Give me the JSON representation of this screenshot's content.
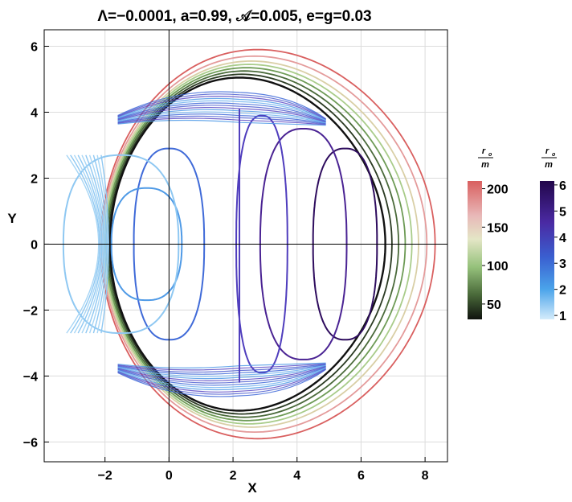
{
  "chart_data": {
    "type": "line",
    "title": "Λ=−0.0001, a=0.99, 𝒜=0.005, e=g=0.03",
    "xlabel": "X",
    "ylabel": "Y",
    "xlim": [
      -3.9,
      8.7
    ],
    "ylim": [
      -6.6,
      6.5
    ],
    "xticks": [
      -2,
      0,
      2,
      4,
      6,
      8
    ],
    "yticks": [
      -6,
      -4,
      -2,
      0,
      2,
      4,
      6
    ],
    "xtick_labels": [
      "−2",
      "0",
      "2",
      "4",
      "6",
      "8"
    ],
    "ytick_labels": [
      "−6",
      "−4",
      "−2",
      "0",
      "2",
      "4",
      "6"
    ],
    "grid": true,
    "outer_orbits": [
      {
        "r_o": 200,
        "right": 8.0,
        "left": -2.45,
        "top": 5.9,
        "color": "#d95f5f"
      },
      {
        "r_o": 175,
        "right": 7.75,
        "left": -2.4,
        "top": 5.7,
        "color": "#e49b9b"
      },
      {
        "r_o": 150,
        "right": 7.5,
        "left": -2.35,
        "top": 5.55,
        "color": "#d9cfa6"
      },
      {
        "r_o": 125,
        "right": 7.3,
        "left": -2.3,
        "top": 5.45,
        "color": "#a9cc8a"
      },
      {
        "r_o": 100,
        "right": 7.1,
        "left": -2.25,
        "top": 5.35,
        "color": "#6e9b56"
      },
      {
        "r_o": 75,
        "right": 6.9,
        "left": -2.2,
        "top": 5.25,
        "color": "#4a6a3a"
      },
      {
        "r_o": 50,
        "right": 6.7,
        "left": -2.15,
        "top": 5.15,
        "color": "#2a3a22"
      },
      {
        "r_o": 35,
        "right": 6.5,
        "left": -2.1,
        "top": 5.05,
        "color": "#111111"
      }
    ],
    "inner_loops": [
      {
        "r_o": 6,
        "center": 5.5,
        "rx": 1.0,
        "ry": 2.9,
        "color": "#2e0c5e"
      },
      {
        "r_o": 5,
        "center": 4.2,
        "rx": 1.35,
        "ry": 3.5,
        "color": "#4a2393"
      },
      {
        "r_o": 4,
        "center": 2.9,
        "rx": 0.8,
        "ry": 3.9,
        "color": "#4f3dbd"
      },
      {
        "r_o": 3,
        "center": 0.0,
        "rx": 1.1,
        "ry": 2.9,
        "color": "#3f6ad8"
      },
      {
        "r_o": 2,
        "center": -0.7,
        "rx": 1.1,
        "ry": 1.7,
        "color": "#4f9ae6"
      },
      {
        "r_o": 1,
        "center": -1.5,
        "rx": 1.8,
        "ry": 2.7,
        "color": "#8fc8f2"
      }
    ],
    "legends": [
      {
        "label_num": "r",
        "label_sub": "o",
        "label_den": "m",
        "ticks": [
          "200",
          "150",
          "100",
          "50"
        ],
        "tick_values": [
          200,
          150,
          100,
          50
        ],
        "range": [
          30,
          210
        ]
      },
      {
        "label_num": "r",
        "label_sub": "o",
        "label_den": "m",
        "ticks": [
          "6",
          "5",
          "4",
          "3",
          "2",
          "1"
        ],
        "tick_values": [
          6,
          5,
          4,
          3,
          2,
          1
        ],
        "range": [
          0.85,
          6.15
        ]
      }
    ]
  }
}
